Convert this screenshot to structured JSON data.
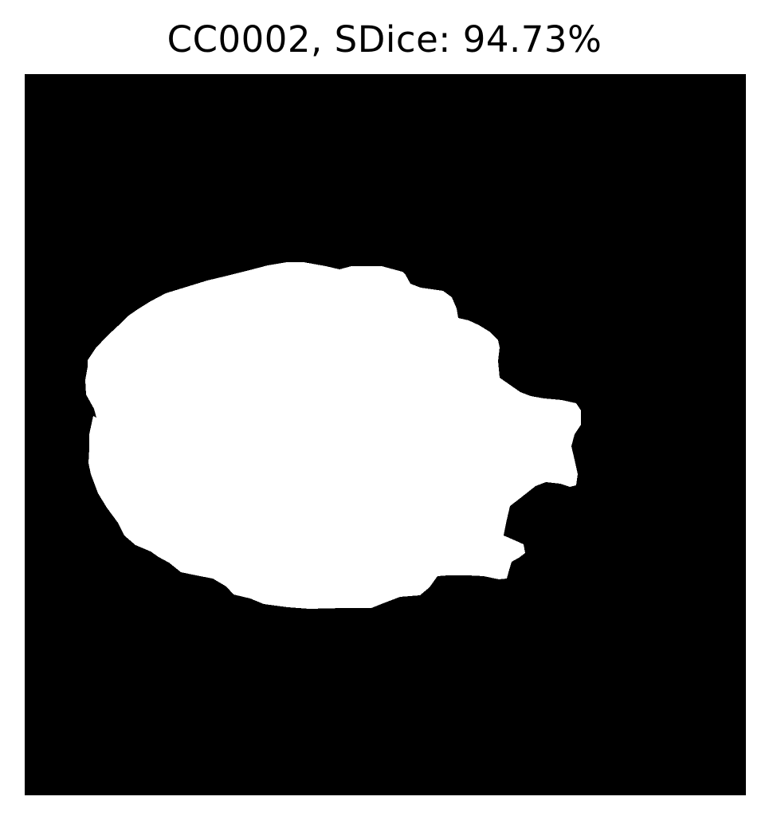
{
  "figure": {
    "title": "CC0002, SDice: 94.73%"
  },
  "colors": {
    "background": "#000000",
    "mask": "#ffffff",
    "text": "#000000"
  }
}
